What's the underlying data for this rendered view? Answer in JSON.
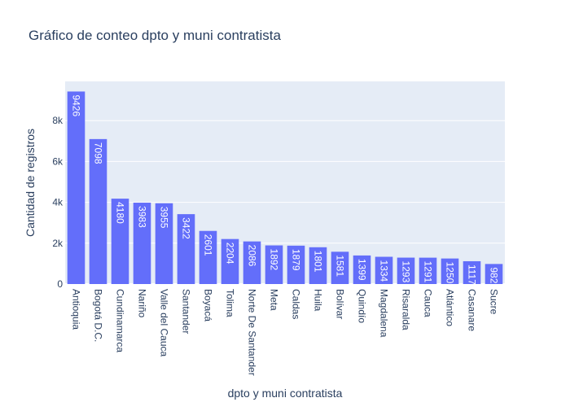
{
  "chart_data": {
    "type": "bar",
    "title": "Gráfico de conteo dpto y muni contratista",
    "xlabel": "dpto y muni contratista",
    "ylabel": "Cantidad de registros",
    "categories": [
      "Antioquia",
      "Bogotá D.C.",
      "Cundinamarca",
      "Nariño",
      "Valle del Cauca",
      "Santander",
      "Boyacá",
      "Tolima",
      "Norte De Santander",
      "Meta",
      "Caldas",
      "Huila",
      "Bolívar",
      "Quindío",
      "Magdalena",
      "Risaralda",
      "Cauca",
      "Atlántico",
      "Casanare",
      "Sucre"
    ],
    "values": [
      9426,
      7098,
      4180,
      3983,
      3955,
      3422,
      2601,
      2204,
      2086,
      1892,
      1879,
      1801,
      1581,
      1399,
      1334,
      1293,
      1291,
      1250,
      1117,
      982
    ],
    "y_ticks": [
      0,
      2000,
      4000,
      6000,
      8000
    ],
    "y_tick_labels": [
      "0",
      "2k",
      "4k",
      "6k",
      "8k"
    ],
    "ylim": [
      0,
      9922
    ],
    "grid": true,
    "bar_color": "#636efa",
    "plot_background": "#e5ecf6"
  }
}
